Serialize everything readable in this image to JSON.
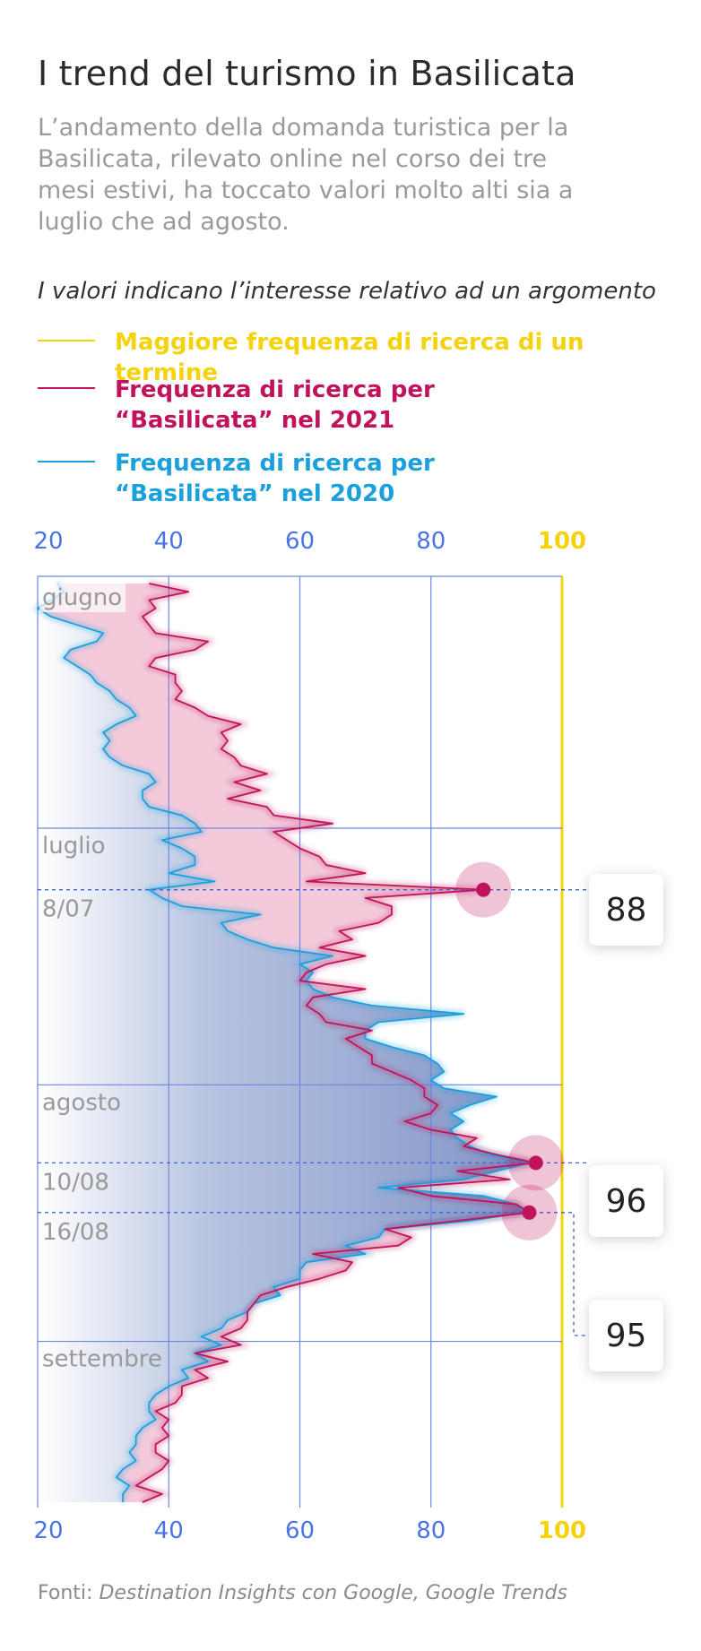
{
  "title": "I trend del turismo in Basilicata",
  "subtitle": "L’andamento della domanda turistica per la Basilicata, rilevato online nel corso dei tre mesi estivi, ha toccato valori molto alti sia a luglio che ad agosto.",
  "note": "I valori indicano l’interesse relativo ad un argomento",
  "legend": [
    {
      "label": "Maggiore frequenza di ricerca di un termine",
      "color": "#f5d20e"
    },
    {
      "label": "Frequenza di ricerca per “Basilicata” nel 2021",
      "color": "#c0135c"
    },
    {
      "label": "Frequenza di ricerca per “Basilicata” nel 2020",
      "color": "#1aa0dc"
    }
  ],
  "source": {
    "prefix": "Fonti:",
    "text": "Destination Insights con Google, Google Trends"
  },
  "chart_data": {
    "type": "line",
    "orientation": "vertical-time",
    "xlim": [
      20,
      100
    ],
    "xticks": [
      20,
      40,
      60,
      80,
      100
    ],
    "grid": true,
    "max_value_color": "#f5d20e",
    "month_labels": [
      {
        "label": "giugno",
        "index": 0
      },
      {
        "label": "luglio",
        "index": 30
      },
      {
        "label": "agosto",
        "index": 61
      },
      {
        "label": "settembre",
        "index": 92
      }
    ],
    "date_labels": [
      {
        "label": "8/07",
        "index": 37
      },
      {
        "label": "10/08",
        "index": 70
      },
      {
        "label": "16/08",
        "index": 76
      }
    ],
    "callouts": [
      {
        "value": "88",
        "index": 37,
        "series": "2021"
      },
      {
        "value": "96",
        "index": 70,
        "series": "2021"
      },
      {
        "value": "95",
        "index": 76,
        "series": "2021"
      }
    ],
    "series": [
      {
        "name": "Frequenza di ricerca per “Basilicata” nel 2021",
        "color": "#c0135c",
        "values": [
          37,
          43,
          37,
          38,
          36,
          37,
          38,
          46,
          44,
          38,
          37,
          41,
          41,
          42,
          41,
          44,
          46,
          51,
          48,
          49,
          48,
          50,
          51,
          55,
          50,
          54,
          49,
          55,
          56,
          65,
          56,
          58,
          60,
          63,
          64,
          70,
          61,
          88,
          70,
          74,
          74,
          72,
          66,
          68,
          63,
          70,
          64,
          61,
          60,
          70,
          62,
          61,
          63,
          64,
          71,
          67,
          69,
          71,
          71,
          74,
          77,
          79,
          79,
          81,
          80,
          76,
          80,
          87,
          85,
          90,
          96,
          84,
          92,
          75,
          80,
          93,
          95,
          84,
          73,
          77,
          75,
          62,
          68,
          67,
          63,
          58,
          54,
          53,
          52,
          52,
          51,
          48,
          51,
          44,
          49,
          44,
          46,
          42,
          42,
          41,
          38,
          40,
          39,
          40,
          38,
          38,
          40,
          39,
          37,
          35,
          39,
          36
        ]
      },
      {
        "name": "Frequenza di ricerca per “Basilicata” nel 2020",
        "color": "#1aa0dc",
        "values": [
          23,
          24,
          22,
          20,
          22,
          26,
          30,
          29,
          25,
          24,
          26,
          28,
          29,
          31,
          32,
          34,
          35,
          32,
          30,
          31,
          30,
          31,
          33,
          37,
          38,
          36,
          36,
          37,
          42,
          44,
          45,
          39,
          42,
          44,
          44,
          40,
          47,
          37,
          39,
          42,
          54,
          48,
          49,
          52,
          56,
          65,
          60,
          62,
          61,
          62,
          65,
          71,
          85,
          72,
          70,
          70,
          74,
          79,
          81,
          82,
          80,
          82,
          90,
          86,
          83,
          85,
          83,
          84,
          86,
          89,
          95,
          90,
          85,
          72,
          88,
          93,
          94,
          86,
          73,
          72,
          67,
          70,
          61,
          60,
          60,
          56,
          57,
          53,
          52,
          49,
          48,
          45,
          48,
          44,
          46,
          42,
          43,
          40,
          38,
          37,
          37,
          38,
          36,
          35,
          35,
          34,
          35,
          33,
          32,
          34,
          33,
          33
        ]
      }
    ]
  }
}
